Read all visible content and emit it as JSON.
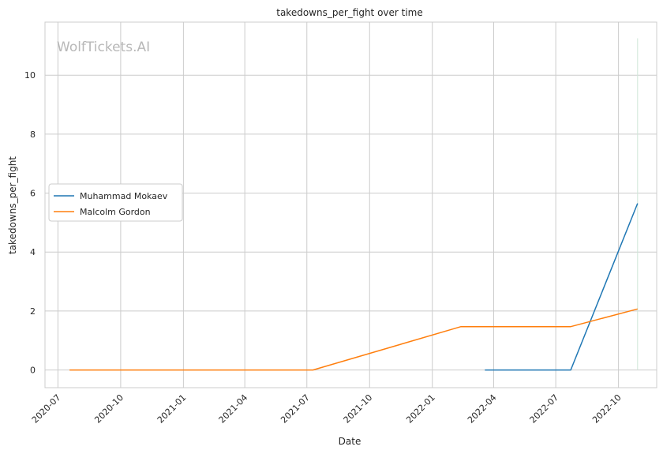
{
  "chart_data": {
    "type": "line",
    "title": "takedowns_per_fight over time",
    "xlabel": "Date",
    "ylabel": "takedowns_per_fight",
    "watermark": "WolfTickets.AI",
    "x_type": "date",
    "xlim": [
      "2020-06-12",
      "2022-11-26"
    ],
    "ylim": [
      -0.6,
      11.8
    ],
    "xticks": [
      {
        "label": "2020-07",
        "date": "2020-07-01"
      },
      {
        "label": "2020-10",
        "date": "2020-10-01"
      },
      {
        "label": "2021-01",
        "date": "2021-01-01"
      },
      {
        "label": "2021-04",
        "date": "2021-04-01"
      },
      {
        "label": "2021-07",
        "date": "2021-07-01"
      },
      {
        "label": "2021-10",
        "date": "2021-10-01"
      },
      {
        "label": "2022-01",
        "date": "2022-01-01"
      },
      {
        "label": "2022-04",
        "date": "2022-04-01"
      },
      {
        "label": "2022-07",
        "date": "2022-07-01"
      },
      {
        "label": "2022-10",
        "date": "2022-10-01"
      }
    ],
    "yticks": [
      0,
      2,
      4,
      6,
      8,
      10
    ],
    "grid": true,
    "legend_position": "center-left",
    "series": [
      {
        "name": "Muhammad Mokaev",
        "color": "#1f77b4",
        "points": [
          {
            "x": "2022-03-19",
            "y": 0
          },
          {
            "x": "2022-07-23",
            "y": 0
          },
          {
            "x": "2022-10-29",
            "y": 5.65
          }
        ]
      },
      {
        "name": "Malcolm Gordon",
        "color": "#ff7f0e",
        "points": [
          {
            "x": "2020-07-18",
            "y": 0
          },
          {
            "x": "2021-07-10",
            "y": 0
          },
          {
            "x": "2022-02-12",
            "y": 1.47
          },
          {
            "x": "2022-07-23",
            "y": 1.47
          },
          {
            "x": "2022-10-29",
            "y": 2.07
          }
        ]
      }
    ],
    "marker_line": {
      "x": "2022-10-29",
      "y_top": 11.25,
      "color": "#cfe6d8"
    }
  }
}
